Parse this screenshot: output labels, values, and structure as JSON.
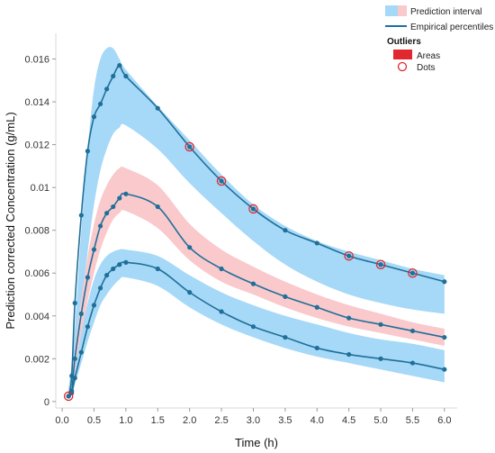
{
  "chart_data": {
    "type": "line",
    "xlabel": "Time (h)",
    "ylabel": "Prediction corrected Concentration (g/mL)",
    "xlim": [
      -0.1,
      6.2
    ],
    "ylim": [
      -0.0003,
      0.0172
    ],
    "xticks": [
      0.0,
      0.5,
      1.0,
      1.5,
      2.0,
      2.5,
      3.0,
      3.5,
      4.0,
      4.5,
      5.0,
      5.5,
      6.0
    ],
    "xtick_labels": [
      "0.0",
      "0.5",
      "1.0",
      "1.5",
      "2.0",
      "2.5",
      "3.0",
      "3.5",
      "4.0",
      "4.5",
      "5.0",
      "5.5",
      "6.0"
    ],
    "yticks": [
      0,
      0.002,
      0.004,
      0.006,
      0.008,
      0.01,
      0.012,
      0.014,
      0.016
    ],
    "ytick_labels": [
      "0",
      "0.002",
      "0.004",
      "0.006",
      "0.008",
      "0.01",
      "0.012",
      "0.014",
      "0.016"
    ],
    "grid": false,
    "colors": {
      "upper_band": "#a6d8f7",
      "median_band": "#f9c9cc",
      "lower_band": "#a6d8f7",
      "line": "#1f6f99",
      "point": "#1f6f99",
      "outlier": "#e0282e",
      "plot_background": "#ffffff",
      "page_background": "#ffffff"
    },
    "bands": [
      {
        "id": "upper",
        "x": [
          0.1,
          0.15,
          0.2,
          0.3,
          0.4,
          0.5,
          0.6,
          0.7,
          0.8,
          0.9,
          1.0,
          1.5,
          2.0,
          2.5,
          3.0,
          3.5,
          4.0,
          4.5,
          5.0,
          5.5,
          6.0
        ],
        "low": [
          0.0003,
          0.0012,
          0.002,
          0.0045,
          0.007,
          0.0092,
          0.0108,
          0.0118,
          0.0125,
          0.0128,
          0.0129,
          0.0118,
          0.0102,
          0.0088,
          0.0075,
          0.0064,
          0.0056,
          0.005,
          0.0046,
          0.0043,
          0.0041
        ],
        "high": [
          0.0006,
          0.0018,
          0.0035,
          0.008,
          0.0118,
          0.0146,
          0.016,
          0.0165,
          0.0165,
          0.016,
          0.0155,
          0.0138,
          0.0122,
          0.0106,
          0.0092,
          0.0082,
          0.0075,
          0.007,
          0.0066,
          0.0062,
          0.0059
        ]
      },
      {
        "id": "median",
        "x": [
          0.1,
          0.15,
          0.2,
          0.3,
          0.4,
          0.5,
          0.6,
          0.7,
          0.8,
          0.9,
          1.0,
          1.5,
          2.0,
          2.5,
          3.0,
          3.5,
          4.0,
          4.5,
          5.0,
          5.5,
          6.0
        ],
        "low": [
          0.0002,
          0.0008,
          0.0014,
          0.003,
          0.0047,
          0.006,
          0.0071,
          0.0079,
          0.0085,
          0.0088,
          0.0089,
          0.0081,
          0.0066,
          0.0056,
          0.005,
          0.0044,
          0.0039,
          0.0035,
          0.0032,
          0.0029,
          0.0026
        ],
        "high": [
          0.0004,
          0.0012,
          0.0024,
          0.0048,
          0.0068,
          0.0083,
          0.0094,
          0.0101,
          0.0106,
          0.0109,
          0.0109,
          0.0101,
          0.0083,
          0.0071,
          0.0063,
          0.0056,
          0.005,
          0.0045,
          0.0041,
          0.0037,
          0.0034
        ]
      },
      {
        "id": "lower",
        "x": [
          0.1,
          0.15,
          0.2,
          0.3,
          0.4,
          0.5,
          0.6,
          0.7,
          0.8,
          0.9,
          1.0,
          1.5,
          2.0,
          2.5,
          3.0,
          3.5,
          4.0,
          4.5,
          5.0,
          5.5,
          6.0
        ],
        "low": [
          0.0001,
          0.0004,
          0.0008,
          0.0018,
          0.0028,
          0.0037,
          0.0045,
          0.005,
          0.0054,
          0.0057,
          0.0058,
          0.0054,
          0.0044,
          0.0036,
          0.003,
          0.0025,
          0.0021,
          0.0018,
          0.0015,
          0.0012,
          0.0009
        ],
        "high": [
          0.0003,
          0.0007,
          0.0014,
          0.0032,
          0.0046,
          0.0057,
          0.0064,
          0.0068,
          0.007,
          0.0071,
          0.0071,
          0.0068,
          0.0059,
          0.0051,
          0.0045,
          0.004,
          0.0036,
          0.0032,
          0.0029,
          0.0027,
          0.0024
        ]
      }
    ],
    "series": [
      {
        "id": "upper",
        "x": [
          0.1,
          0.15,
          0.2,
          0.3,
          0.4,
          0.5,
          0.6,
          0.7,
          0.8,
          0.9,
          1.0,
          1.5,
          2.0,
          2.5,
          3.0,
          3.5,
          4.0,
          4.5,
          5.0,
          5.5,
          6.0
        ],
        "values": [
          0.00025,
          0.0012,
          0.0046,
          0.0087,
          0.0117,
          0.0133,
          0.0139,
          0.0146,
          0.0152,
          0.0157,
          0.0152,
          0.0137,
          0.0119,
          0.0103,
          0.009,
          0.008,
          0.0074,
          0.0068,
          0.0064,
          0.006,
          0.0056
        ]
      },
      {
        "id": "median",
        "x": [
          0.1,
          0.15,
          0.2,
          0.3,
          0.4,
          0.5,
          0.6,
          0.7,
          0.8,
          0.9,
          1.0,
          1.5,
          2.0,
          2.5,
          3.0,
          3.5,
          4.0,
          4.5,
          5.0,
          5.5,
          6.0
        ],
        "values": [
          0.00025,
          0.0005,
          0.002,
          0.0041,
          0.0058,
          0.0071,
          0.0082,
          0.0088,
          0.0091,
          0.0095,
          0.0097,
          0.0091,
          0.0072,
          0.0062,
          0.0055,
          0.0049,
          0.0044,
          0.0039,
          0.0036,
          0.0033,
          0.003
        ]
      },
      {
        "id": "lower",
        "x": [
          0.1,
          0.15,
          0.2,
          0.3,
          0.4,
          0.5,
          0.6,
          0.7,
          0.8,
          0.9,
          1.0,
          1.5,
          2.0,
          2.5,
          3.0,
          3.5,
          4.0,
          4.5,
          5.0,
          5.5,
          6.0
        ],
        "values": [
          0.00025,
          0.0004,
          0.0011,
          0.0023,
          0.0035,
          0.0045,
          0.0053,
          0.0059,
          0.0062,
          0.0064,
          0.0065,
          0.0062,
          0.0051,
          0.0042,
          0.0035,
          0.003,
          0.0025,
          0.0022,
          0.002,
          0.0018,
          0.0015
        ]
      }
    ],
    "outliers": [
      {
        "x": 0.1,
        "y": 0.00025
      },
      {
        "x": 2.0,
        "y": 0.0119
      },
      {
        "x": 2.5,
        "y": 0.0103
      },
      {
        "x": 3.0,
        "y": 0.009
      },
      {
        "x": 4.5,
        "y": 0.0068
      },
      {
        "x": 5.0,
        "y": 0.0064
      },
      {
        "x": 5.5,
        "y": 0.006
      }
    ],
    "legend": {
      "placement": "top-right",
      "prediction_interval": "Prediction interval",
      "empirical_percentiles": "Empirical percentiles",
      "outliers_title": "Outliers",
      "areas": "Areas",
      "dots": "Dots"
    }
  }
}
